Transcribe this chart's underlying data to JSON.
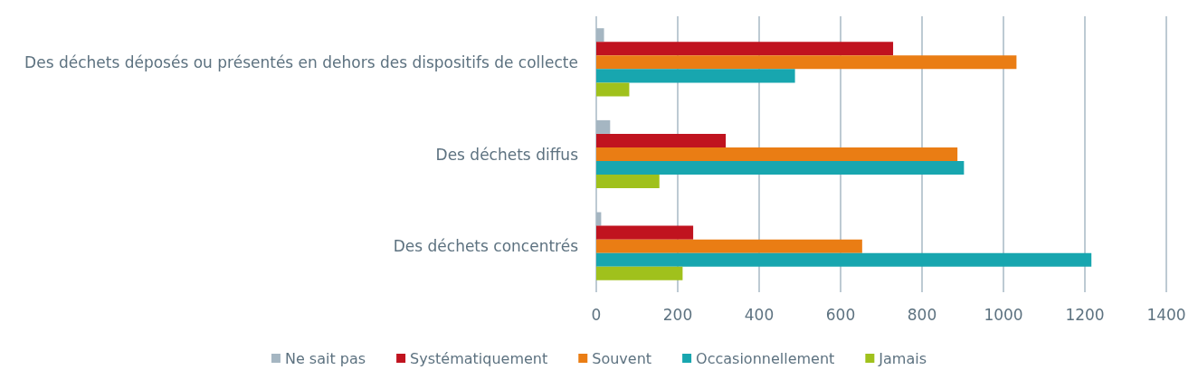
{
  "chart_data": {
    "type": "bar",
    "orientation": "horizontal",
    "categories": [
      "Des déchets déposés ou présentés en dehors des dispositifs de collecte",
      "Des déchets diffus",
      "Des déchets concentrés"
    ],
    "series": [
      {
        "name": "Ne sait pas",
        "color": "#a5b6c2",
        "values": [
          19,
          34,
          12
        ]
      },
      {
        "name": "Systématiquement",
        "color": "#c0131f",
        "values": [
          729,
          318,
          238
        ]
      },
      {
        "name": "Souvent",
        "color": "#ea7d14",
        "values": [
          1032,
          887,
          653
        ]
      },
      {
        "name": "Occasionnellement",
        "color": "#18a6af",
        "values": [
          488,
          903,
          1216
        ]
      },
      {
        "name": "Jamais",
        "color": "#a0c11c",
        "values": [
          81,
          155,
          212
        ]
      }
    ],
    "xlim": [
      0,
      1400
    ],
    "xticks": [
      0,
      200,
      400,
      600,
      800,
      1000,
      1200,
      1400
    ],
    "grid": "x",
    "legend": "bottom"
  }
}
